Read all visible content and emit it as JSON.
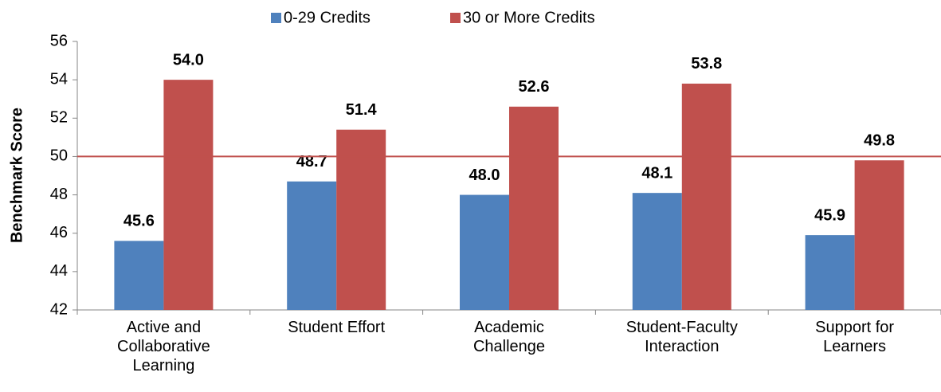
{
  "chart_data": {
    "type": "bar",
    "y_label": "Benchmark Score",
    "categories": [
      "Active and Collaborative Learning",
      "Student Effort",
      "Academic Challenge",
      "Student-Faculty Interaction",
      "Support for Learners"
    ],
    "series": [
      {
        "name": "0-29 Credits",
        "color": "#4f81bd",
        "values": [
          45.6,
          48.7,
          48.0,
          48.1,
          45.9
        ],
        "value_labels": [
          "45.6",
          "48.7",
          "48.0",
          "48.1",
          "45.9"
        ]
      },
      {
        "name": "30 or More Credits",
        "color": "#c0504d",
        "values": [
          54.0,
          51.4,
          52.6,
          53.8,
          49.8
        ],
        "value_labels": [
          "54.0",
          "51.4",
          "52.6",
          "53.8",
          "49.8"
        ]
      }
    ],
    "ylim": [
      42,
      56
    ],
    "yticks": [
      42,
      44,
      46,
      48,
      50,
      52,
      54,
      56
    ],
    "reference_line": {
      "value": 50,
      "color": "#c0504d"
    },
    "legend": "top"
  }
}
